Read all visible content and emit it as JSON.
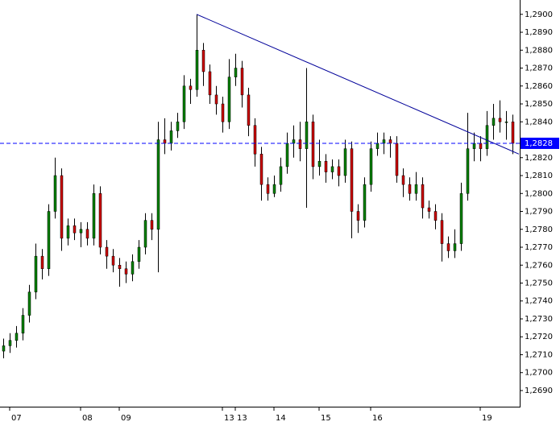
{
  "chart_data": {
    "type": "candlestick",
    "categories": [
      null,
      "07",
      null,
      null,
      null,
      null,
      null,
      null,
      null,
      null,
      null,
      null,
      "08",
      null,
      null,
      null,
      null,
      null,
      "09",
      null,
      null,
      null,
      null,
      null,
      null,
      null,
      null,
      null,
      null,
      null,
      null,
      null,
      null,
      null,
      "13",
      null,
      "13",
      null,
      null,
      null,
      null,
      null,
      "14",
      null,
      null,
      null,
      null,
      null,
      null,
      "15",
      null,
      null,
      null,
      null,
      null,
      null,
      null,
      "16",
      null,
      null,
      null,
      null,
      null,
      null,
      null,
      null,
      null,
      null,
      null,
      null,
      null,
      null,
      null,
      null,
      "19",
      null,
      null,
      null,
      null,
      null
    ],
    "open": [
      1.2712,
      1.2715,
      1.2718,
      1.2722,
      1.2732,
      1.2745,
      1.2765,
      1.2758,
      1.279,
      1.281,
      1.2775,
      1.2782,
      1.2778,
      1.278,
      1.2775,
      1.28,
      1.277,
      1.2765,
      1.276,
      1.2758,
      1.2755,
      1.2762,
      1.277,
      1.2785,
      1.278,
      1.283,
      1.2828,
      1.2835,
      1.284,
      1.286,
      1.2858,
      1.288,
      1.2868,
      1.2855,
      1.285,
      1.284,
      1.2865,
      1.287,
      1.2855,
      1.2838,
      1.2822,
      1.2805,
      1.28,
      1.2805,
      1.2815,
      1.2828,
      1.283,
      1.2825,
      1.284,
      1.2815,
      1.2818,
      1.2812,
      1.2815,
      1.281,
      1.2825,
      1.279,
      1.2785,
      1.2805,
      1.2825,
      1.2828,
      1.283,
      1.2828,
      1.281,
      1.2805,
      1.28,
      1.2805,
      1.2792,
      1.279,
      1.2785,
      1.2772,
      1.2768,
      1.2772,
      1.28,
      1.2825,
      1.2828,
      1.2825,
      1.2838,
      1.2842,
      1.284,
      1.284
    ],
    "high": [
      1.2719,
      1.2722,
      1.2726,
      1.2736,
      1.2749,
      1.2772,
      1.2769,
      1.2794,
      1.282,
      1.2814,
      1.2786,
      1.2786,
      1.2784,
      1.2784,
      1.2805,
      1.2804,
      1.2774,
      1.2769,
      1.2764,
      1.2762,
      1.2766,
      1.2774,
      1.2789,
      1.2789,
      1.284,
      1.2842,
      1.284,
      1.2845,
      1.2866,
      1.2864,
      1.29,
      1.2884,
      1.2872,
      1.286,
      1.2854,
      1.2875,
      1.2878,
      1.2874,
      1.2859,
      1.2842,
      1.2826,
      1.2809,
      1.281,
      1.282,
      1.2834,
      1.2838,
      1.284,
      1.287,
      1.2844,
      1.283,
      1.2822,
      1.2819,
      1.2819,
      1.283,
      1.2829,
      1.2794,
      1.2809,
      1.2829,
      1.2834,
      1.2834,
      1.2832,
      1.2832,
      1.2814,
      1.2809,
      1.2812,
      1.2809,
      1.2796,
      1.2794,
      1.2789,
      1.2776,
      1.278,
      1.2806,
      1.2845,
      1.2834,
      1.2832,
      1.2846,
      1.285,
      1.2852,
      1.2846,
      1.2844
    ],
    "low": [
      1.2708,
      1.2711,
      1.2714,
      1.2718,
      1.2728,
      1.2741,
      1.2752,
      1.2754,
      1.2786,
      1.2768,
      1.2771,
      1.2774,
      1.277,
      1.2771,
      1.2771,
      1.2766,
      1.2758,
      1.2756,
      1.2748,
      1.275,
      1.2751,
      1.2758,
      1.2766,
      1.2774,
      1.2756,
      1.2822,
      1.2824,
      1.2831,
      1.2836,
      1.285,
      1.2854,
      1.286,
      1.285,
      1.2844,
      1.2834,
      1.2836,
      1.286,
      1.2848,
      1.2832,
      1.2815,
      1.2796,
      1.2796,
      1.2798,
      1.2801,
      1.2811,
      1.282,
      1.2818,
      1.2792,
      1.2808,
      1.281,
      1.2806,
      1.2808,
      1.2804,
      1.2806,
      1.2775,
      1.2778,
      1.2781,
      1.2801,
      1.2821,
      1.2822,
      1.282,
      1.2806,
      1.2798,
      1.2796,
      1.2796,
      1.2786,
      1.2786,
      1.278,
      1.2762,
      1.2764,
      1.2764,
      1.2768,
      1.2796,
      1.2818,
      1.2818,
      1.2821,
      1.283,
      1.2834,
      1.283,
      1.2822
    ],
    "close": [
      1.2715,
      1.2718,
      1.2722,
      1.2732,
      1.2745,
      1.2765,
      1.2758,
      1.279,
      1.281,
      1.2775,
      1.2782,
      1.2778,
      1.278,
      1.2775,
      1.28,
      1.277,
      1.2765,
      1.276,
      1.2758,
      1.2755,
      1.2762,
      1.277,
      1.2785,
      1.278,
      1.283,
      1.2828,
      1.2835,
      1.284,
      1.286,
      1.2858,
      1.288,
      1.2868,
      1.2855,
      1.285,
      1.284,
      1.2865,
      1.287,
      1.2855,
      1.2838,
      1.2822,
      1.2805,
      1.28,
      1.2805,
      1.2815,
      1.2828,
      1.283,
      1.2825,
      1.284,
      1.2815,
      1.2818,
      1.2812,
      1.2815,
      1.281,
      1.2825,
      1.279,
      1.2785,
      1.2805,
      1.2825,
      1.2828,
      1.283,
      1.2828,
      1.281,
      1.2805,
      1.28,
      1.2805,
      1.2792,
      1.279,
      1.2785,
      1.2772,
      1.2768,
      1.2772,
      1.28,
      1.2825,
      1.2828,
      1.2825,
      1.2838,
      1.2842,
      1.284,
      1.284,
      1.2828
    ],
    "up_color": "#008000",
    "down_color": "#cc0000",
    "ylim": [
      1.2681,
      1.2908
    ],
    "yticks": [
      {
        "value": 1.29,
        "label": "1,2900"
      },
      {
        "value": 1.289,
        "label": "1,2890"
      },
      {
        "value": 1.288,
        "label": "1,2880"
      },
      {
        "value": 1.287,
        "label": "1,2870"
      },
      {
        "value": 1.286,
        "label": "1,2860"
      },
      {
        "value": 1.285,
        "label": "1,2850"
      },
      {
        "value": 1.284,
        "label": "1,2840"
      },
      {
        "value": 1.282,
        "label": "1,2820"
      },
      {
        "value": 1.281,
        "label": "1,2810"
      },
      {
        "value": 1.28,
        "label": "1,2800"
      },
      {
        "value": 1.279,
        "label": "1,2790"
      },
      {
        "value": 1.278,
        "label": "1,2780"
      },
      {
        "value": 1.277,
        "label": "1,2770"
      },
      {
        "value": 1.276,
        "label": "1,2760"
      },
      {
        "value": 1.275,
        "label": "1,2750"
      },
      {
        "value": 1.274,
        "label": "1,2740"
      },
      {
        "value": 1.273,
        "label": "1,2730"
      },
      {
        "value": 1.272,
        "label": "1,2720"
      },
      {
        "value": 1.271,
        "label": "1,2710"
      },
      {
        "value": 1.27,
        "label": "1,2700"
      },
      {
        "value": 1.269,
        "label": "1,2690"
      }
    ],
    "trendline": {
      "from": [
        30,
        1.29
      ],
      "to": [
        80,
        1.2822
      ],
      "color": "#000099"
    },
    "hline": {
      "value": 1.2828,
      "label": "1,2828",
      "color": "#0000ff"
    }
  }
}
